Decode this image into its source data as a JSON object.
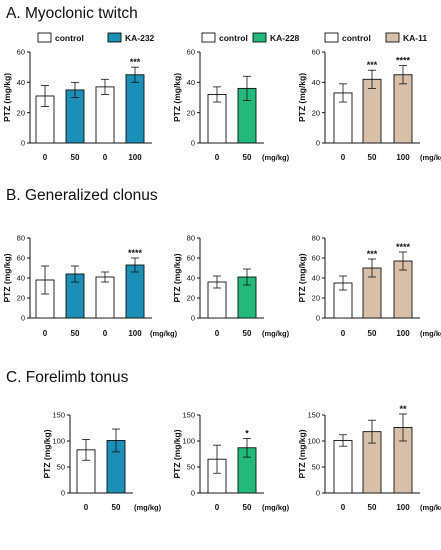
{
  "colors": {
    "control": "#ffffff",
    "KA-232": "#1b8fb5",
    "KA-228": "#23b97a",
    "KA-11": "#d8bfa8"
  },
  "sections": [
    {
      "title": "A. Myoclonic twitch",
      "charts": [
        {
          "type": "bar",
          "ylabel": "PTZ (mg/kg)",
          "ylim": [
            0,
            60
          ],
          "yticks": [
            0,
            20,
            40,
            60
          ],
          "legend": [
            "control",
            "KA-232"
          ],
          "unit_label": "",
          "groups": [
            {
              "label": "0",
              "series": "control",
              "value": 31,
              "error": 7,
              "sig": ""
            },
            {
              "label": "50",
              "series": "KA-232",
              "value": 35,
              "error": 5,
              "sig": ""
            },
            {
              "label": "0",
              "series": "control",
              "value": 37,
              "error": 5,
              "sig": ""
            },
            {
              "label": "100",
              "series": "KA-232",
              "value": 45,
              "error": 5,
              "sig": "***"
            }
          ]
        },
        {
          "type": "bar",
          "ylabel": "PTZ (mg/kg)",
          "ylim": [
            0,
            60
          ],
          "yticks": [
            0,
            20,
            40,
            60
          ],
          "legend": [
            "control",
            "KA-228"
          ],
          "unit_label": "(mg/kg)",
          "groups": [
            {
              "label": "0",
              "series": "control",
              "value": 32,
              "error": 5,
              "sig": ""
            },
            {
              "label": "50",
              "series": "KA-228",
              "value": 36,
              "error": 8,
              "sig": ""
            }
          ]
        },
        {
          "type": "bar",
          "ylabel": "PTZ (mg/kg)",
          "ylim": [
            0,
            60
          ],
          "yticks": [
            0,
            20,
            40,
            60
          ],
          "legend": [
            "control",
            "KA-11"
          ],
          "unit_label": "(mg/kg)",
          "groups": [
            {
              "label": "0",
              "series": "control",
              "value": 33,
              "error": 6,
              "sig": ""
            },
            {
              "label": "50",
              "series": "KA-11",
              "value": 42,
              "error": 6,
              "sig": "***"
            },
            {
              "label": "100",
              "series": "KA-11",
              "value": 45,
              "error": 6,
              "sig": "****"
            }
          ]
        }
      ]
    },
    {
      "title": "B. Generalized clonus",
      "charts": [
        {
          "type": "bar",
          "ylabel": "PTZ (mg/kg)",
          "ylim": [
            0,
            80
          ],
          "yticks": [
            0,
            20,
            40,
            60,
            80
          ],
          "legend": [],
          "unit_label": "(mg/kg)",
          "groups": [
            {
              "label": "0",
              "series": "control",
              "value": 38,
              "error": 14,
              "sig": ""
            },
            {
              "label": "50",
              "series": "KA-232",
              "value": 44,
              "error": 8,
              "sig": ""
            },
            {
              "label": "0",
              "series": "control",
              "value": 41,
              "error": 5,
              "sig": ""
            },
            {
              "label": "100",
              "series": "KA-232",
              "value": 53,
              "error": 7,
              "sig": "****"
            }
          ]
        },
        {
          "type": "bar",
          "ylabel": "PTZ (mg/kg)",
          "ylim": [
            0,
            80
          ],
          "yticks": [
            0,
            20,
            40,
            60,
            80
          ],
          "legend": [],
          "unit_label": "(mg/kg)",
          "groups": [
            {
              "label": "0",
              "series": "control",
              "value": 36,
              "error": 6,
              "sig": ""
            },
            {
              "label": "50",
              "series": "KA-228",
              "value": 41,
              "error": 8,
              "sig": ""
            }
          ]
        },
        {
          "type": "bar",
          "ylabel": "PTZ (mg/kg)",
          "ylim": [
            0,
            80
          ],
          "yticks": [
            0,
            20,
            40,
            60,
            80
          ],
          "legend": [],
          "unit_label": "(mg/kg)",
          "groups": [
            {
              "label": "0",
              "series": "control",
              "value": 35,
              "error": 7,
              "sig": ""
            },
            {
              "label": "50",
              "series": "KA-11",
              "value": 50,
              "error": 9,
              "sig": "***"
            },
            {
              "label": "100",
              "series": "KA-11",
              "value": 57,
              "error": 9,
              "sig": "****"
            }
          ]
        }
      ]
    },
    {
      "title": "C. Forelimb tonus",
      "charts": [
        {
          "type": "bar",
          "ylabel": "PTZ (mg/kg)",
          "ylim": [
            0,
            150
          ],
          "yticks": [
            0,
            50,
            100,
            150
          ],
          "legend": [],
          "unit_label": "(mg/kg)",
          "groups": [
            {
              "label": "0",
              "series": "control",
              "value": 83,
              "error": 20,
              "sig": ""
            },
            {
              "label": "50",
              "series": "KA-232",
              "value": 101,
              "error": 22,
              "sig": ""
            }
          ]
        },
        {
          "type": "bar",
          "ylabel": "PTZ (mg/kg)",
          "ylim": [
            0,
            150
          ],
          "yticks": [
            0,
            50,
            100,
            150
          ],
          "legend": [],
          "unit_label": "(mg/kg)",
          "groups": [
            {
              "label": "0",
              "series": "control",
              "value": 65,
              "error": 27,
              "sig": ""
            },
            {
              "label": "50",
              "series": "KA-228",
              "value": 87,
              "error": 18,
              "sig": "*"
            }
          ]
        },
        {
          "type": "bar",
          "ylabel": "PTZ (mg/kg)",
          "ylim": [
            0,
            150
          ],
          "yticks": [
            0,
            50,
            100,
            150
          ],
          "legend": [],
          "unit_label": "(mg/kg)",
          "groups": [
            {
              "label": "0",
              "series": "control",
              "value": 101,
              "error": 11,
              "sig": ""
            },
            {
              "label": "50",
              "series": "KA-11",
              "value": 118,
              "error": 22,
              "sig": ""
            },
            {
              "label": "100",
              "series": "KA-11",
              "value": 126,
              "error": 26,
              "sig": "**"
            }
          ]
        }
      ]
    }
  ]
}
